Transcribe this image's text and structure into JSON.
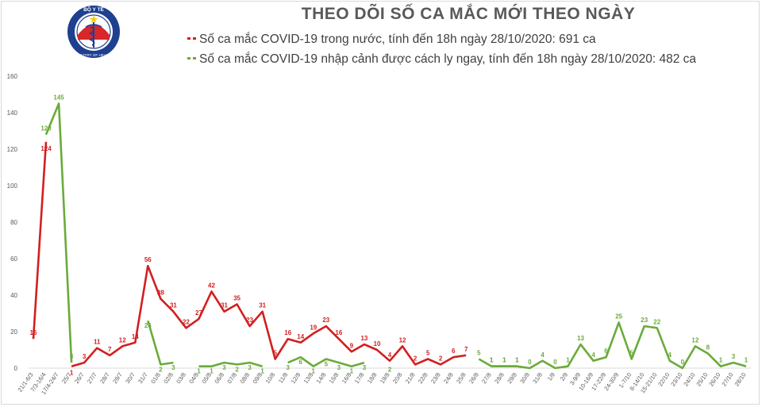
{
  "title": "THEO DÕI SỐ CA MẮC MỚI THEO NGÀY",
  "logo": {
    "top_text": "BỘ Y TẾ",
    "bottom_text": "MINISTRY OF HEALTH"
  },
  "colors": {
    "domestic": "#d21f1f",
    "imported": "#6aab3a",
    "axis_text": "#595959",
    "grid": "#d9d9d9"
  },
  "chart_data": {
    "type": "line",
    "title": "THEO DÕI SỐ CA MẮC MỚI THEO NGÀY",
    "xlabel": "",
    "ylabel": "",
    "ylim": [
      0,
      160
    ],
    "yticks": [
      0,
      20,
      40,
      60,
      80,
      100,
      120,
      140,
      160
    ],
    "grid": false,
    "legend_position": "top",
    "categories": [
      "21/1-6/3",
      "7/3-16/4",
      "17/4-24/7",
      "25/7",
      "26/7",
      "27/7",
      "28/7",
      "29/7",
      "30/7",
      "31/7",
      "01/8",
      "02/8",
      "03/8",
      "04/8",
      "05/8",
      "06/8",
      "07/8",
      "08/8",
      "09/8",
      "10/8",
      "11/8",
      "12/8",
      "13/8",
      "14/8",
      "15/8",
      "16/8",
      "17/8",
      "18/8",
      "19/8",
      "20/8",
      "21/8",
      "22/8",
      "23/8",
      "24/8",
      "25/8",
      "26/8",
      "27/8",
      "28/8",
      "29/8",
      "30/8",
      "31/8",
      "1/9",
      "2/9",
      "3-9/9",
      "10-16/9",
      "17-22/9",
      "24-30/9",
      "1-7/10",
      "8-14/10",
      "15-21/10",
      "22/10",
      "23/10",
      "24/10",
      "25/10",
      "26/10",
      "27/10",
      "28/10"
    ],
    "series": [
      {
        "name": "Số ca mắc COVID-19 trong nước, tính đến 18h ngày 28/10/2020: 691 ca",
        "color": "#d21f1f",
        "values": [
          16,
          124,
          null,
          1,
          3,
          11,
          7,
          12,
          14,
          56,
          38,
          31,
          22,
          27,
          42,
          31,
          35,
          23,
          31,
          5,
          16,
          14,
          19,
          23,
          16,
          9,
          13,
          10,
          4,
          12,
          2,
          5,
          2,
          6,
          7,
          null,
          1,
          1,
          1,
          null,
          null,
          null,
          null,
          null,
          null,
          null,
          null,
          null,
          null,
          null,
          null,
          null,
          null,
          null,
          null,
          null,
          null
        ],
        "labels": [
          "16",
          "124",
          "",
          "1",
          "3",
          "11",
          "7",
          "12",
          "14",
          "56",
          "38",
          "31",
          "22",
          "27",
          "42",
          "31",
          "35",
          "23",
          "31",
          "5",
          "16",
          "14",
          "19",
          "23",
          "16",
          "9",
          "13",
          "10",
          "4",
          "12",
          "2",
          "5",
          "2",
          "6",
          "7",
          "",
          "1",
          "1",
          "1",
          "",
          "",
          "",
          "",
          "",
          "",
          "",
          "",
          "",
          "",
          "",
          "",
          "",
          "",
          "",
          "",
          "",
          ""
        ]
      },
      {
        "name": "Số ca mắc COVID-19 nhập cảnh được cách ly ngay, tính đến 18h ngày 28/10/2020: 482 ca",
        "color": "#6aab3a",
        "values": [
          null,
          128,
          145,
          3,
          null,
          null,
          null,
          null,
          null,
          26,
          2,
          3,
          null,
          1,
          1,
          3,
          2,
          3,
          1,
          null,
          3,
          6,
          1,
          5,
          3,
          1,
          3,
          null,
          2,
          null,
          null,
          null,
          null,
          null,
          null,
          5,
          1,
          1,
          1,
          0,
          4,
          0,
          1,
          13,
          4,
          6,
          25,
          5,
          23,
          22,
          4,
          0,
          12,
          8,
          1,
          3,
          1
        ],
        "labels": [
          "",
          "128",
          "145",
          "3",
          "",
          "",
          "",
          "",
          "",
          "26",
          "2",
          "3",
          "",
          "1",
          "1",
          "3",
          "2",
          "3",
          "1",
          "",
          "3",
          "6",
          "1",
          "5",
          "3",
          "1",
          "3",
          "",
          "2",
          "",
          "",
          "",
          "",
          "",
          "",
          "5",
          "1",
          "1",
          "1",
          "0",
          "4",
          "0",
          "1",
          "13",
          "4",
          "6",
          "25",
          "5",
          "23",
          "22",
          "4",
          "0",
          "12",
          "8",
          "1",
          "3",
          "1"
        ]
      }
    ]
  }
}
